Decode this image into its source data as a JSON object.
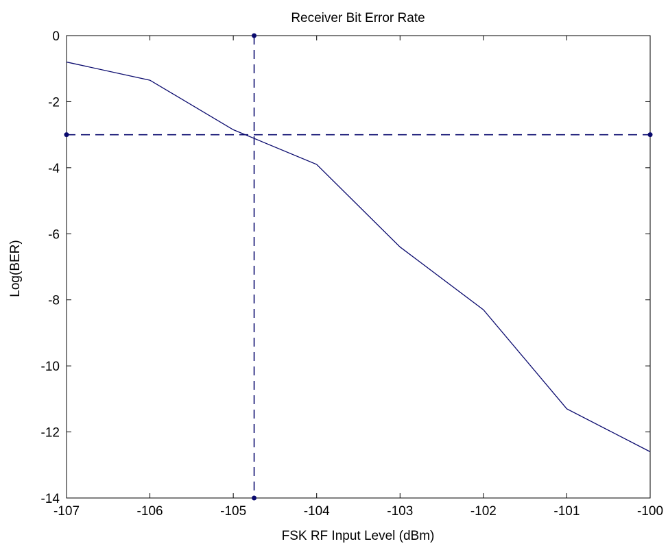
{
  "chart_data": {
    "type": "line",
    "title": "Receiver Bit Error Rate",
    "xlabel": "FSK RF Input Level (dBm)",
    "ylabel": "Log(BER)",
    "xlim": [
      -107,
      -100
    ],
    "ylim": [
      -14,
      0
    ],
    "xticks": [
      -107,
      -106,
      -105,
      -104,
      -103,
      -102,
      -101,
      -100
    ],
    "yticks": [
      0,
      -2,
      -4,
      -6,
      -8,
      -10,
      -12,
      -14
    ],
    "grid": false,
    "series": [
      {
        "x": [
          -107,
          -106,
          -105,
          -104,
          -103,
          -102,
          -101,
          -100
        ],
        "y": [
          -0.8,
          -1.35,
          -2.85,
          -3.9,
          -6.4,
          -8.3,
          -11.3,
          -12.6
        ],
        "color": "#0a0a6e",
        "style": "solid"
      }
    ],
    "reference_lines": [
      {
        "orientation": "vertical",
        "x": -104.75,
        "color": "#0a0a6e",
        "style": "dashed",
        "endpoint_markers": true
      },
      {
        "orientation": "horizontal",
        "y": -3,
        "color": "#0a0a6e",
        "style": "dashed",
        "endpoint_markers": true
      }
    ]
  }
}
